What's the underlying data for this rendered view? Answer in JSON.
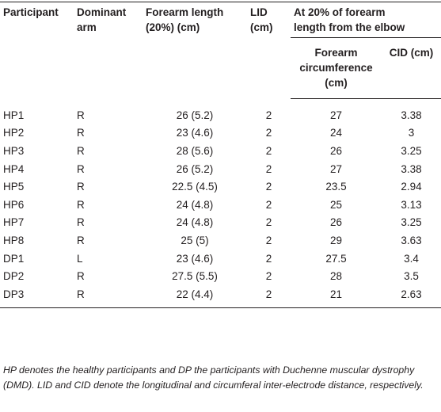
{
  "table": {
    "headers": [
      "Participant",
      "Dominant arm",
      "Forearm length (20%) (cm)",
      "LID (cm)",
      "At 20% of forearm length from the elbow"
    ],
    "subheaders": [
      "Forearm circumference (cm)",
      "CID (cm)"
    ],
    "rows": [
      [
        "HP1",
        "R",
        "26 (5.2)",
        "2",
        "27",
        "3.38"
      ],
      [
        "HP2",
        "R",
        "23 (4.6)",
        "2",
        "24",
        "3"
      ],
      [
        "HP3",
        "R",
        "28 (5.6)",
        "2",
        "26",
        "3.25"
      ],
      [
        "HP4",
        "R",
        "26 (5.2)",
        "2",
        "27",
        "3.38"
      ],
      [
        "HP5",
        "R",
        "22.5 (4.5)",
        "2",
        "23.5",
        "2.94"
      ],
      [
        "HP6",
        "R",
        "24 (4.8)",
        "2",
        "25",
        "3.13"
      ],
      [
        "HP7",
        "R",
        "24 (4.8)",
        "2",
        "26",
        "3.25"
      ],
      [
        "HP8",
        "R",
        "25 (5)",
        "2",
        "29",
        "3.63"
      ],
      [
        "DP1",
        "L",
        "23 (4.6)",
        "2",
        "27.5",
        "3.4"
      ],
      [
        "DP2",
        "R",
        "27.5 (5.5)",
        "2",
        "28",
        "3.5"
      ],
      [
        "DP3",
        "R",
        "22 (4.4)",
        "2",
        "21",
        "2.63"
      ]
    ],
    "footnote": "HP denotes the healthy participants and DP the participants with Duchenne muscular dystrophy (DMD). LID and CID denote the longitudinal and circumferal inter-electrode distance, respectively."
  }
}
